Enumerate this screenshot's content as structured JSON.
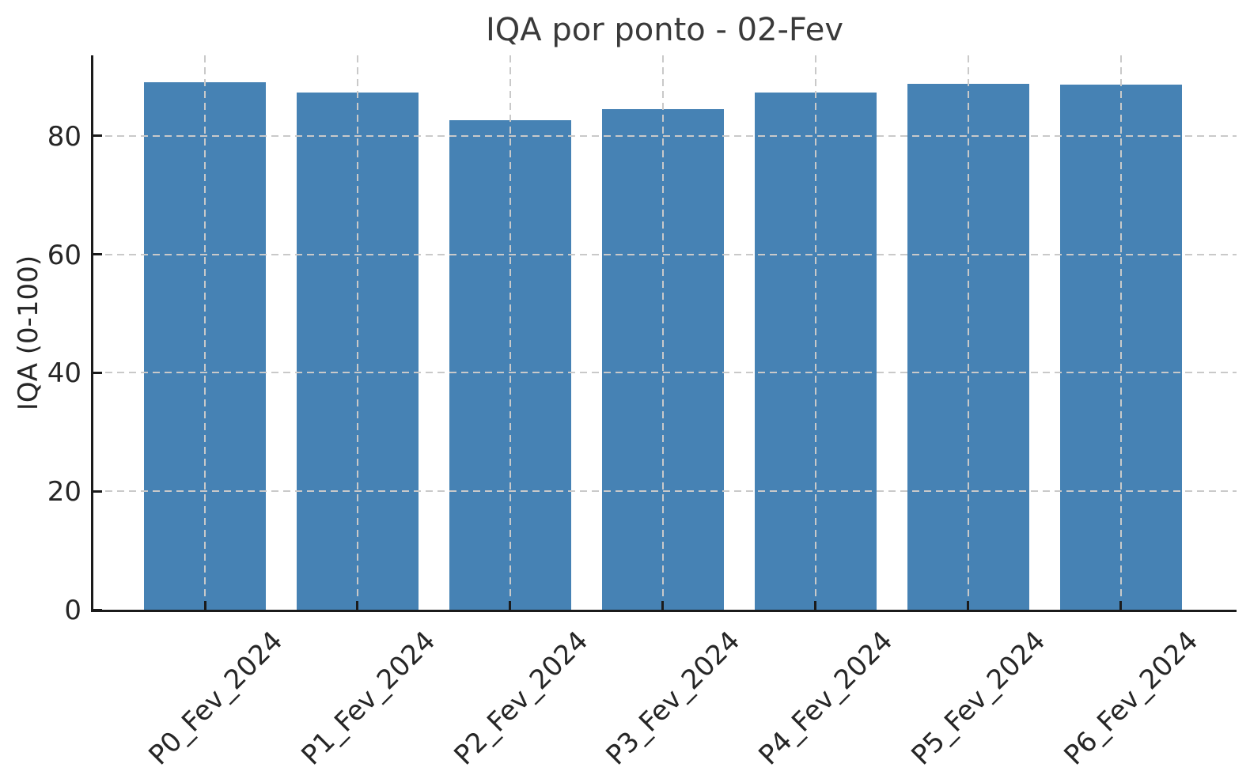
{
  "chart_data": {
    "type": "bar",
    "title": "IQA por ponto - 02-Fev",
    "xlabel": "",
    "ylabel": "IQA (0-100)",
    "categories": [
      "P0_Fev_2024",
      "P1_Fev_2024",
      "P2_Fev_2024",
      "P3_Fev_2024",
      "P4_Fev_2024",
      "P5_Fev_2024",
      "P6_Fev_2024"
    ],
    "values": [
      89.1,
      87.3,
      82.6,
      84.5,
      87.3,
      88.8,
      88.7
    ],
    "yticks": [
      0,
      20,
      40,
      60,
      80
    ],
    "ylim": [
      0,
      93.6
    ],
    "grid": true,
    "grid_style": "dashed",
    "grid_on_top": true,
    "x_tick_rotation": 45,
    "legend": null,
    "colors": {
      "bar": "#4682B4",
      "grid": "#c9c9c9",
      "axis": "#1b1b1b",
      "tick_text": "#262626",
      "title_text": "#3a3a3a",
      "background": "#ffffff"
    }
  }
}
